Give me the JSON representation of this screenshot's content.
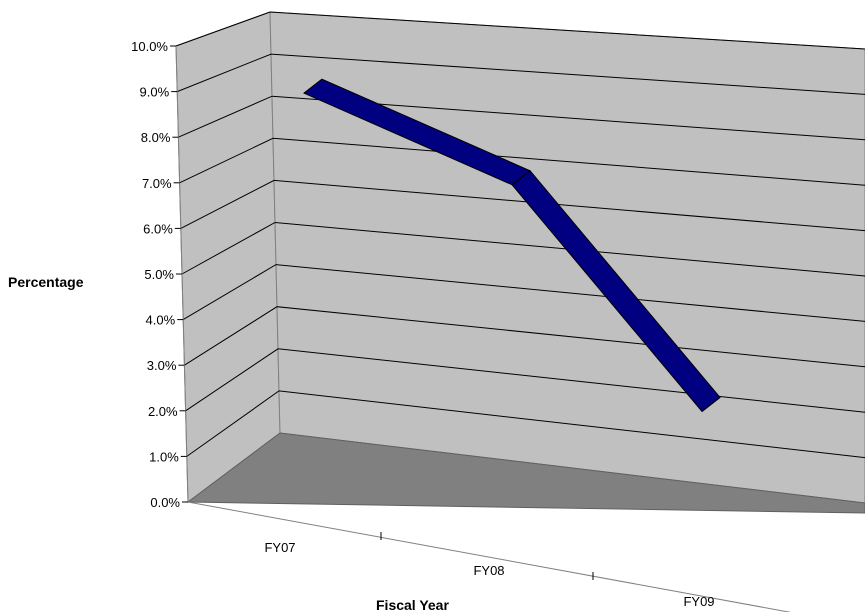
{
  "chart_data": {
    "type": "line",
    "subtype": "3d-line",
    "title": "",
    "xlabel": "Fiscal Year",
    "ylabel": "Percentage",
    "categories": [
      "FY07",
      "FY08",
      "FY09"
    ],
    "series": [
      {
        "values": [
          9.4,
          7.3,
          2.1
        ]
      }
    ],
    "ylim": [
      0,
      10
    ],
    "ytick_labels": [
      "0.0%",
      "1.0%",
      "2.0%",
      "3.0%",
      "4.0%",
      "5.0%",
      "6.0%",
      "7.0%",
      "8.0%",
      "9.0%",
      "10.0%"
    ],
    "grid": true,
    "legend": "none"
  },
  "colors": {
    "back_wall": "#c0c0c0",
    "side_wall": "#c0c0c0",
    "floor": "#808080",
    "series": "#000080",
    "series_top": "#00008b",
    "gridline": "#000000"
  }
}
